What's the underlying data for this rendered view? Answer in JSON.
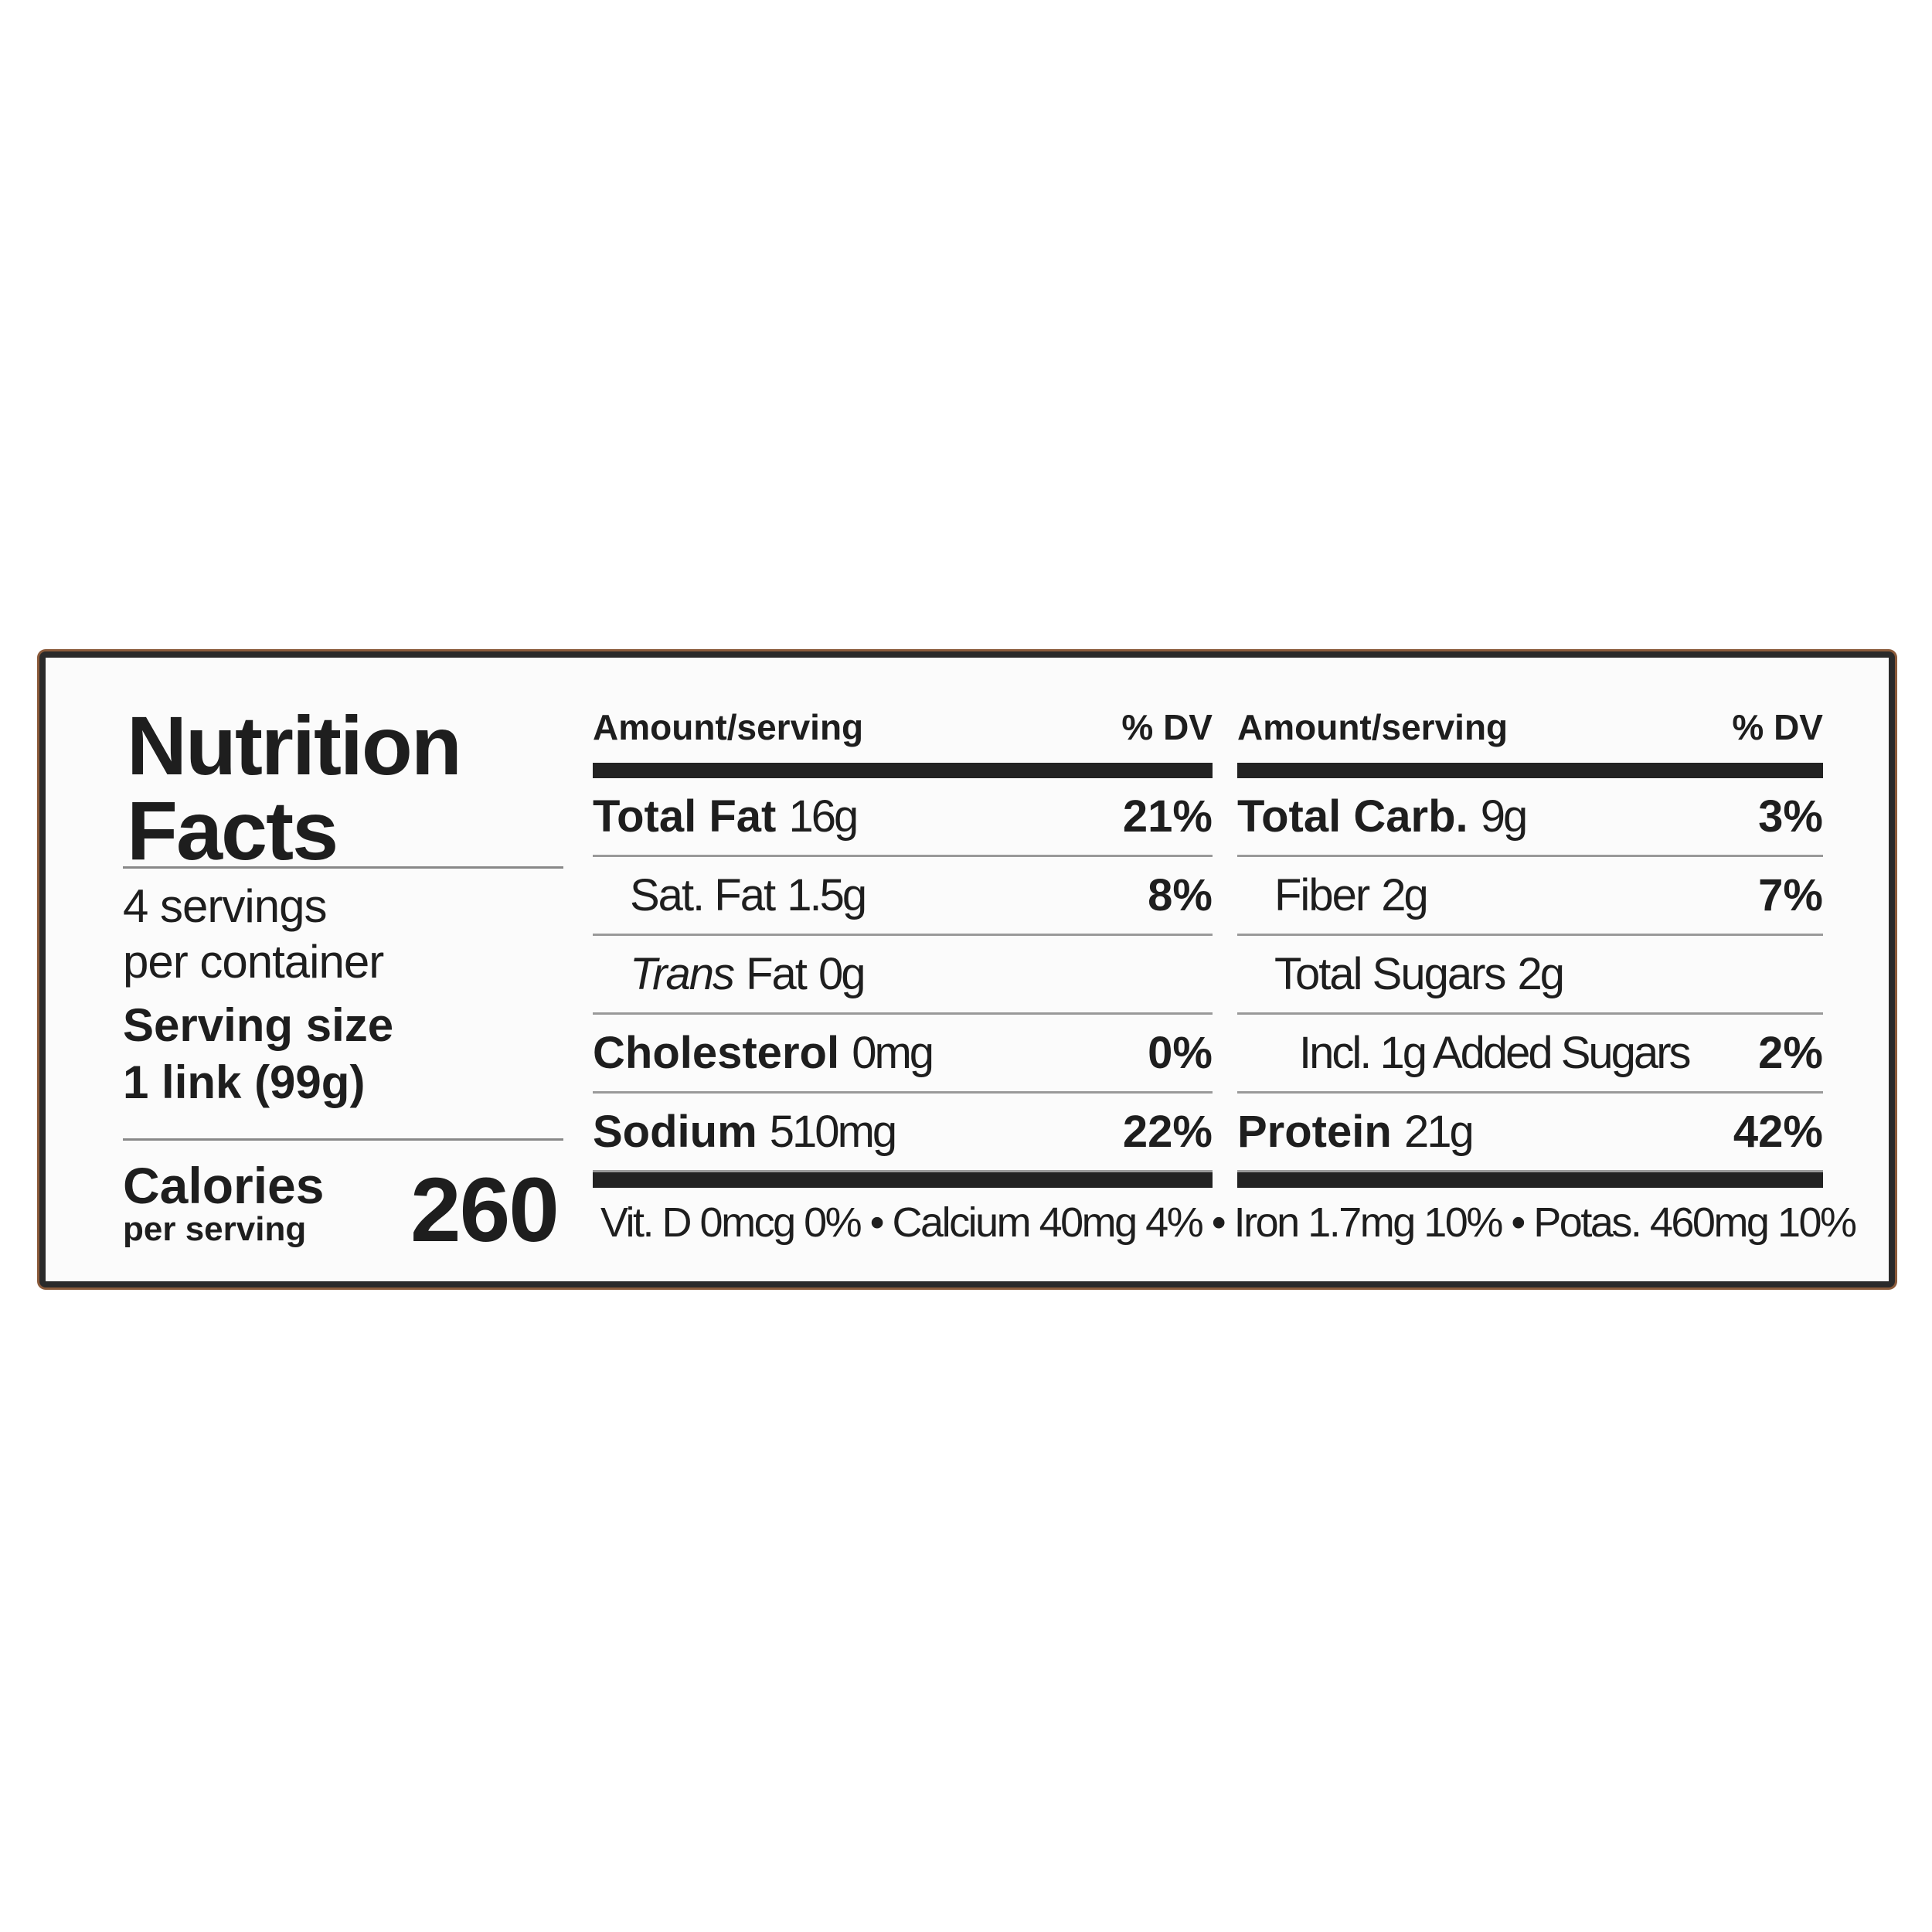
{
  "title_line1": "Nutrition",
  "title_line2": "Facts",
  "servings_line1": "4 servings",
  "servings_line2": "per container",
  "serving_size_label": "Serving size",
  "serving_size_value": "1 link (99g)",
  "calories_label": "Calories",
  "calories_sub": "per serving",
  "calories_value": "260",
  "columns": [
    {
      "header_amount": "Amount/serving",
      "header_dv": "% DV",
      "rows": [
        {
          "name": "Total Fat",
          "amount": "16g",
          "dv": "21%",
          "bold": true,
          "indent": 0
        },
        {
          "name": "Sat. Fat",
          "amount": "1.5g",
          "dv": "8%",
          "bold": false,
          "indent": 1
        },
        {
          "name": "Trans",
          "name_suffix": "Fat",
          "amount": "0g",
          "dv": "",
          "bold": false,
          "indent": 1
        },
        {
          "name": "Cholesterol",
          "amount": "0mg",
          "dv": "0%",
          "bold": true,
          "indent": 0
        },
        {
          "name": "Sodium",
          "amount": "510mg",
          "dv": "22%",
          "bold": true,
          "indent": 0
        }
      ]
    },
    {
      "header_amount": "Amount/serving",
      "header_dv": "% DV",
      "rows": [
        {
          "name": "Total Carb.",
          "amount": "9g",
          "dv": "3%",
          "bold": true,
          "indent": 0
        },
        {
          "name": "Fiber",
          "amount": "2g",
          "dv": "7%",
          "bold": false,
          "indent": 1
        },
        {
          "name": "Total Sugars",
          "amount": "2g",
          "dv": "",
          "bold": false,
          "indent": 1
        },
        {
          "name": "Incl. 1g Added Sugars",
          "amount": "",
          "dv": "2%",
          "bold": false,
          "indent": 2
        },
        {
          "name": "Protein",
          "amount": "21g",
          "dv": "42%",
          "bold": true,
          "indent": 0
        }
      ]
    }
  ],
  "footer": "Vit. D 0mcg 0% • Calcium 40mg 4% • Iron 1.7mg 10% • Potas. 460mg 10%",
  "colors": {
    "border": "#2a2a2a",
    "package_edge": "#8a5a3a",
    "text": "#1e1e1e"
  }
}
